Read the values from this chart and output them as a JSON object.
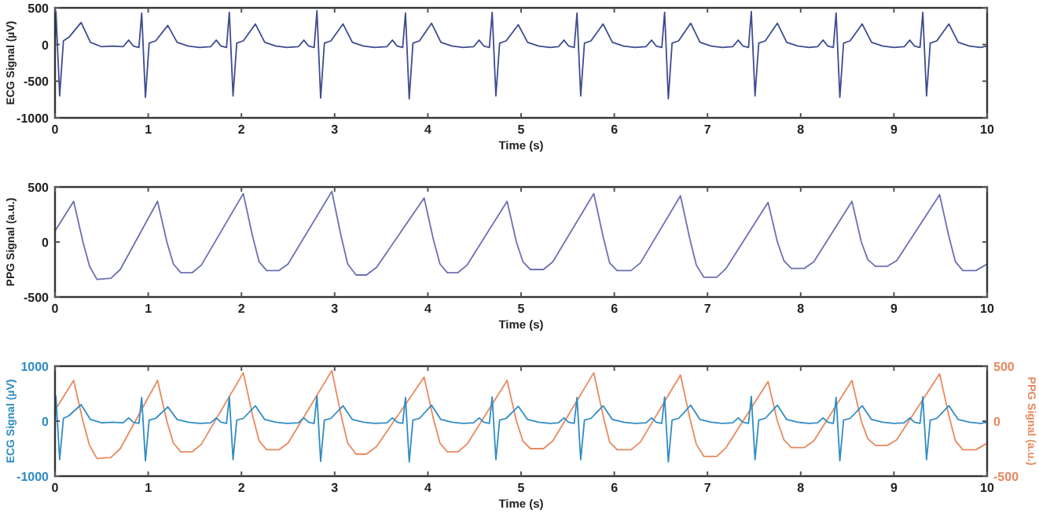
{
  "chart_data": [
    {
      "type": "line",
      "xlabel": "Time (s)",
      "ylabel": "ECG Signal (µV)",
      "xlim": [
        0,
        10
      ],
      "xticks": [
        0,
        1,
        2,
        3,
        4,
        5,
        6,
        7,
        8,
        9,
        10
      ],
      "ylim": [
        -1000,
        500
      ],
      "yticks": [
        -1000,
        -500,
        0,
        500
      ],
      "series": [
        {
          "color": "#3d4c8f",
          "x": [
            0,
            0.01,
            0.05,
            0.09,
            0.15,
            0.28,
            0.38,
            0.5,
            0.62,
            0.73,
            0.79,
            0.84,
            0.9,
            0.93,
            0.97,
            1.01,
            1.08,
            1.21,
            1.31,
            1.43,
            1.55,
            1.67,
            1.73,
            1.78,
            1.84,
            1.87,
            1.91,
            1.95,
            2.02,
            2.15,
            2.25,
            2.37,
            2.49,
            2.61,
            2.67,
            2.72,
            2.78,
            2.81,
            2.85,
            2.89,
            2.96,
            3.09,
            3.19,
            3.31,
            3.43,
            3.56,
            3.62,
            3.67,
            3.73,
            3.76,
            3.8,
            3.84,
            3.91,
            4.04,
            4.14,
            4.26,
            4.38,
            4.49,
            4.55,
            4.6,
            4.66,
            4.69,
            4.73,
            4.77,
            4.84,
            4.97,
            5.07,
            5.19,
            5.31,
            5.4,
            5.46,
            5.51,
            5.57,
            5.6,
            5.64,
            5.68,
            5.75,
            5.88,
            5.98,
            6.1,
            6.22,
            6.34,
            6.4,
            6.45,
            6.51,
            6.54,
            6.58,
            6.62,
            6.69,
            6.82,
            6.92,
            7.04,
            7.16,
            7.27,
            7.33,
            7.38,
            7.44,
            7.47,
            7.51,
            7.55,
            7.62,
            7.75,
            7.85,
            7.97,
            8.09,
            8.18,
            8.24,
            8.29,
            8.35,
            8.38,
            8.42,
            8.46,
            8.53,
            8.66,
            8.76,
            8.88,
            9,
            9.11,
            9.17,
            9.22,
            9.28,
            9.31,
            9.35,
            9.39,
            9.46,
            9.59,
            9.69,
            9.81,
            9.93,
            10
          ],
          "values": [
            -100,
            450,
            -700,
            50,
            100,
            300,
            30,
            -30,
            -20,
            -30,
            60,
            -20,
            -40,
            430,
            -720,
            20,
            50,
            260,
            30,
            -20,
            -40,
            -30,
            60,
            -20,
            -40,
            440,
            -700,
            20,
            50,
            280,
            30,
            -20,
            -40,
            -30,
            60,
            -20,
            -40,
            460,
            -730,
            20,
            50,
            280,
            30,
            -20,
            -40,
            -30,
            60,
            -20,
            -40,
            430,
            -740,
            20,
            50,
            290,
            30,
            -20,
            -40,
            -30,
            60,
            -20,
            -40,
            440,
            -700,
            20,
            50,
            270,
            30,
            -20,
            -40,
            -30,
            60,
            -20,
            -40,
            430,
            -700,
            20,
            50,
            280,
            30,
            -20,
            -40,
            -30,
            60,
            -20,
            -40,
            440,
            -740,
            20,
            50,
            290,
            30,
            -20,
            -40,
            -30,
            60,
            -20,
            -40,
            450,
            -700,
            20,
            50,
            290,
            30,
            -20,
            -40,
            -30,
            60,
            -20,
            -40,
            430,
            -720,
            20,
            50,
            280,
            30,
            -20,
            -40,
            -30,
            60,
            -20,
            -40,
            440,
            -700,
            20,
            50,
            280,
            30,
            -20,
            -40,
            -20
          ]
        }
      ]
    },
    {
      "type": "line",
      "xlabel": "Time (s)",
      "ylabel": "PPG Signal (a.u.)",
      "xlim": [
        0,
        10
      ],
      "xticks": [
        0,
        1,
        2,
        3,
        4,
        5,
        6,
        7,
        8,
        9,
        10
      ],
      "ylim": [
        -500,
        500
      ],
      "yticks": [
        -500,
        0,
        500
      ],
      "series": [
        {
          "color": "#6c70b3",
          "x": [
            0,
            0.2,
            0.3,
            0.37,
            0.45,
            0.6,
            0.7,
            1.1,
            1.2,
            1.27,
            1.35,
            1.47,
            1.57,
            2.02,
            2.12,
            2.19,
            2.27,
            2.4,
            2.5,
            2.97,
            3.07,
            3.14,
            3.23,
            3.34,
            3.45,
            3.96,
            4.06,
            4.13,
            4.21,
            4.32,
            4.42,
            4.85,
            4.95,
            5.02,
            5.1,
            5.24,
            5.34,
            5.78,
            5.88,
            5.95,
            6.03,
            6.18,
            6.28,
            6.71,
            6.81,
            6.88,
            6.96,
            7.1,
            7.2,
            7.65,
            7.75,
            7.82,
            7.9,
            8.04,
            8.14,
            8.55,
            8.65,
            8.72,
            8.8,
            8.93,
            9.03,
            9.49,
            9.59,
            9.66,
            9.74,
            9.88,
            10
          ],
          "values": [
            100,
            370,
            0,
            -220,
            -340,
            -330,
            -250,
            370,
            0,
            -200,
            -280,
            -280,
            -210,
            440,
            50,
            -180,
            -260,
            -260,
            -200,
            460,
            50,
            -200,
            -300,
            -300,
            -230,
            400,
            20,
            -200,
            -280,
            -280,
            -210,
            370,
            0,
            -180,
            -250,
            -250,
            -180,
            440,
            50,
            -190,
            -260,
            -260,
            -190,
            420,
            30,
            -210,
            -320,
            -320,
            -240,
            360,
            0,
            -170,
            -240,
            -240,
            -180,
            370,
            0,
            -160,
            -220,
            -220,
            -170,
            430,
            50,
            -180,
            -260,
            -260,
            -200
          ]
        }
      ]
    },
    {
      "type": "line",
      "xlabel": "Time (s)",
      "ylabel": "ECG Signal (µV)",
      "y2label": "PPG Signal (a.u.)",
      "xlim": [
        0,
        10
      ],
      "xticks": [
        0,
        1,
        2,
        3,
        4,
        5,
        6,
        7,
        8,
        9,
        10
      ],
      "ylim": [
        -1000,
        1000
      ],
      "yticks": [
        -1000,
        0,
        1000
      ],
      "y2lim": [
        -500,
        500
      ],
      "y2ticks": [
        -500,
        0,
        500
      ],
      "series": [
        {
          "color": "#e8895e",
          "axis": "y2",
          "x": [
            0,
            0.2,
            0.3,
            0.37,
            0.45,
            0.6,
            0.7,
            1.1,
            1.2,
            1.27,
            1.35,
            1.47,
            1.57,
            2.02,
            2.12,
            2.19,
            2.27,
            2.4,
            2.5,
            2.97,
            3.07,
            3.14,
            3.23,
            3.34,
            3.45,
            3.96,
            4.06,
            4.13,
            4.21,
            4.32,
            4.42,
            4.85,
            4.95,
            5.02,
            5.1,
            5.24,
            5.34,
            5.78,
            5.88,
            5.95,
            6.03,
            6.18,
            6.28,
            6.71,
            6.81,
            6.88,
            6.96,
            7.1,
            7.2,
            7.65,
            7.75,
            7.82,
            7.9,
            8.04,
            8.14,
            8.55,
            8.65,
            8.72,
            8.8,
            8.93,
            9.03,
            9.49,
            9.59,
            9.66,
            9.74,
            9.88,
            10
          ],
          "values": [
            100,
            370,
            0,
            -220,
            -340,
            -330,
            -250,
            370,
            0,
            -200,
            -280,
            -280,
            -210,
            440,
            50,
            -180,
            -260,
            -260,
            -200,
            460,
            50,
            -200,
            -300,
            -300,
            -230,
            400,
            20,
            -200,
            -280,
            -280,
            -210,
            370,
            0,
            -180,
            -250,
            -250,
            -180,
            440,
            50,
            -190,
            -260,
            -260,
            -190,
            420,
            30,
            -210,
            -320,
            -320,
            -240,
            360,
            0,
            -170,
            -240,
            -240,
            -180,
            370,
            0,
            -160,
            -220,
            -220,
            -170,
            430,
            50,
            -180,
            -260,
            -260,
            -200
          ]
        },
        {
          "color": "#2f8cc4",
          "axis": "y",
          "x": [
            0,
            0.01,
            0.05,
            0.09,
            0.15,
            0.28,
            0.38,
            0.5,
            0.62,
            0.73,
            0.79,
            0.84,
            0.9,
            0.93,
            0.97,
            1.01,
            1.08,
            1.21,
            1.31,
            1.43,
            1.55,
            1.67,
            1.73,
            1.78,
            1.84,
            1.87,
            1.91,
            1.95,
            2.02,
            2.15,
            2.25,
            2.37,
            2.49,
            2.61,
            2.67,
            2.72,
            2.78,
            2.81,
            2.85,
            2.89,
            2.96,
            3.09,
            3.19,
            3.31,
            3.43,
            3.56,
            3.62,
            3.67,
            3.73,
            3.76,
            3.8,
            3.84,
            3.91,
            4.04,
            4.14,
            4.26,
            4.38,
            4.49,
            4.55,
            4.6,
            4.66,
            4.69,
            4.73,
            4.77,
            4.84,
            4.97,
            5.07,
            5.19,
            5.31,
            5.4,
            5.46,
            5.51,
            5.57,
            5.6,
            5.64,
            5.68,
            5.75,
            5.88,
            5.98,
            6.1,
            6.22,
            6.34,
            6.4,
            6.45,
            6.51,
            6.54,
            6.58,
            6.62,
            6.69,
            6.82,
            6.92,
            7.04,
            7.16,
            7.27,
            7.33,
            7.38,
            7.44,
            7.47,
            7.51,
            7.55,
            7.62,
            7.75,
            7.85,
            7.97,
            8.09,
            8.18,
            8.24,
            8.29,
            8.35,
            8.38,
            8.42,
            8.46,
            8.53,
            8.66,
            8.76,
            8.88,
            9,
            9.11,
            9.17,
            9.22,
            9.28,
            9.31,
            9.35,
            9.39,
            9.46,
            9.59,
            9.69,
            9.81,
            9.93,
            10
          ],
          "values": [
            -100,
            450,
            -700,
            50,
            100,
            300,
            30,
            -30,
            -20,
            -30,
            60,
            -20,
            -40,
            430,
            -720,
            20,
            50,
            260,
            30,
            -20,
            -40,
            -30,
            60,
            -20,
            -40,
            440,
            -700,
            20,
            50,
            280,
            30,
            -20,
            -40,
            -30,
            60,
            -20,
            -40,
            460,
            -730,
            20,
            50,
            280,
            30,
            -20,
            -40,
            -30,
            60,
            -20,
            -40,
            430,
            -740,
            20,
            50,
            290,
            30,
            -20,
            -40,
            -30,
            60,
            -20,
            -40,
            440,
            -700,
            20,
            50,
            270,
            30,
            -20,
            -40,
            -30,
            60,
            -20,
            -40,
            430,
            -700,
            20,
            50,
            280,
            30,
            -20,
            -40,
            -30,
            60,
            -20,
            -40,
            440,
            -740,
            20,
            50,
            290,
            30,
            -20,
            -40,
            -30,
            60,
            -20,
            -40,
            450,
            -700,
            20,
            50,
            290,
            30,
            -20,
            -40,
            -30,
            60,
            -20,
            -40,
            430,
            -720,
            20,
            50,
            280,
            30,
            -20,
            -40,
            -30,
            60,
            -20,
            -40,
            440,
            -700,
            20,
            50,
            280,
            30,
            -20,
            -40,
            -20
          ]
        }
      ]
    }
  ]
}
